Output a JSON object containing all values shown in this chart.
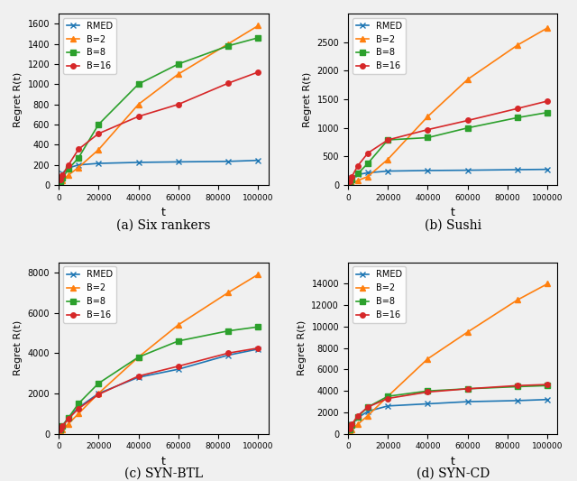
{
  "t_points": [
    1000,
    2000,
    5000,
    10000,
    20000,
    40000,
    60000,
    85000,
    100000
  ],
  "panels": [
    {
      "label": "(a) Six rankers",
      "ylabel": "Regret R(t)",
      "ylim": [
        0,
        1700
      ],
      "yticks": [
        0,
        200,
        400,
        600,
        800,
        1000,
        1200,
        1400,
        1600
      ],
      "series": {
        "RMED": [
          80,
          120,
          170,
          200,
          215,
          225,
          230,
          235,
          245
        ],
        "B=2": [
          20,
          45,
          100,
          175,
          350,
          800,
          1100,
          1400,
          1580
        ],
        "B=8": [
          30,
          70,
          160,
          270,
          600,
          1000,
          1200,
          1380,
          1460
        ],
        "B=16": [
          50,
          100,
          200,
          355,
          510,
          680,
          800,
          1010,
          1120
        ]
      }
    },
    {
      "label": "(b) Sushi",
      "ylabel": "Regret R(t)",
      "ylim": [
        0,
        3000
      ],
      "yticks": [
        0,
        500,
        1000,
        1500,
        2000,
        2500
      ],
      "series": {
        "RMED": [
          80,
          130,
          185,
          215,
          245,
          255,
          260,
          270,
          275
        ],
        "B=2": [
          15,
          35,
          80,
          150,
          450,
          1200,
          1850,
          2450,
          2750
        ],
        "B=8": [
          40,
          90,
          200,
          380,
          790,
          830,
          1000,
          1180,
          1270
        ],
        "B=16": [
          60,
          150,
          340,
          560,
          790,
          970,
          1130,
          1340,
          1470
        ]
      }
    },
    {
      "label": "(c) SYN-BTL",
      "ylabel": "Regret R(t)",
      "ylim": [
        0,
        8500
      ],
      "yticks": [
        0,
        2000,
        4000,
        6000,
        8000
      ],
      "series": {
        "RMED": [
          200,
          400,
          800,
          1300,
          2000,
          2800,
          3200,
          3900,
          4200
        ],
        "B=2": [
          100,
          200,
          500,
          1000,
          2000,
          3800,
          5400,
          7000,
          7900
        ],
        "B=8": [
          200,
          400,
          800,
          1500,
          2500,
          3800,
          4600,
          5100,
          5300
        ],
        "B=16": [
          200,
          380,
          750,
          1250,
          1950,
          2860,
          3350,
          4000,
          4250
        ]
      }
    },
    {
      "label": "(d) SYN-CD",
      "ylabel": "Regret R(t)",
      "ylim": [
        0,
        16000
      ],
      "yticks": [
        0,
        2000,
        4000,
        6000,
        8000,
        10000,
        12000,
        14000
      ],
      "series": {
        "RMED": [
          500,
          900,
          1500,
          2100,
          2600,
          2800,
          3000,
          3100,
          3200
        ],
        "B=2": [
          200,
          400,
          900,
          1700,
          3500,
          7000,
          9500,
          12500,
          14000
        ],
        "B=8": [
          400,
          800,
          1600,
          2500,
          3500,
          4000,
          4200,
          4400,
          4500
        ],
        "B=16": [
          500,
          900,
          1700,
          2500,
          3300,
          3900,
          4200,
          4500,
          4600
        ]
      }
    }
  ],
  "colors": {
    "RMED": "#1f77b4",
    "B=2": "#ff7f0e",
    "B=8": "#2ca02c",
    "B=16": "#d62728"
  },
  "markers": {
    "RMED": "x",
    "B=2": "^",
    "B=8": "s",
    "B=16": "o"
  },
  "xlabel": "t",
  "bg_color": "#f0f0f0",
  "xticks": [
    0,
    20000,
    40000,
    60000,
    80000,
    100000
  ],
  "xticklabels": [
    "0",
    "20000",
    "40000",
    "60000",
    "80000",
    "100000"
  ]
}
